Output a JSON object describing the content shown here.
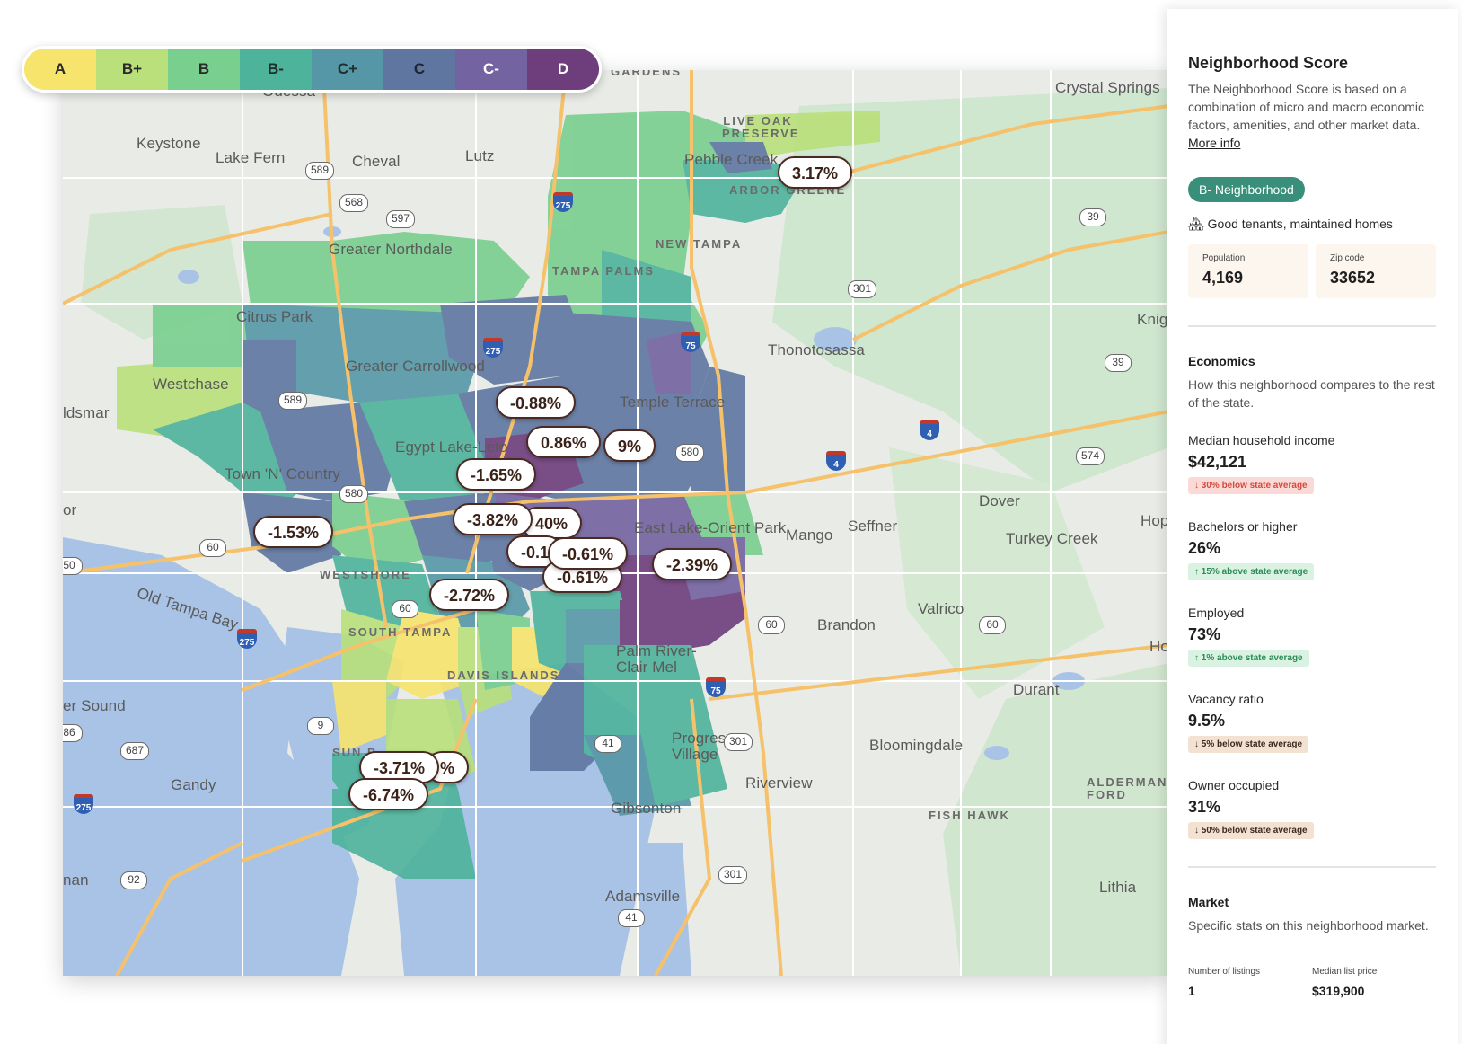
{
  "legend": [
    {
      "grade": "A",
      "color": "#f7e46c"
    },
    {
      "grade": "B+",
      "color": "#b9e07a"
    },
    {
      "grade": "B",
      "color": "#79cf8e"
    },
    {
      "grade": "B-",
      "color": "#4db39b"
    },
    {
      "grade": "C+",
      "color": "#5597a6"
    },
    {
      "grade": "C",
      "color": "#5f76a1"
    },
    {
      "grade": "C-",
      "color": "#7363a0"
    },
    {
      "grade": "D",
      "color": "#6d3d7c"
    }
  ],
  "map": {
    "places": [
      "Odessa",
      "Keystone",
      "Lake Fern",
      "Cheval",
      "Lutz",
      "Crystal Springs",
      "Pebble Creek",
      "Greater Northdale",
      "Citrus Park",
      "Westchase",
      "ldsmar",
      "Greater Carrollwood",
      "Temple Terrace",
      "Town 'N' Country",
      "Egypt Lake-Leto",
      "Thonotosassa",
      "East Lake-Orient Park",
      "Mango",
      "Seffner",
      "Dover",
      "Turkey Creek",
      "Valrico",
      "Brandon",
      "Old Tampa Bay",
      "Palm River-Clair Mel",
      "Progress Village",
      "Bloomingdale",
      "Riverview",
      "Gibsonton",
      "Gandy",
      "er Sound",
      "Durant",
      "Adamsville",
      "Lithia",
      "Knigh",
      "Hop Gar",
      "Ho",
      "or",
      "nan"
    ],
    "caps_labels": [
      "GARDENS",
      "LIVE OAK PRESERVE",
      "ARBOR GREENE",
      "NEW TAMPA",
      "TAMPA PALMS",
      "WESTSHORE",
      "SOUTH TAMPA",
      "DAVIS ISLANDS",
      "SUN B",
      "FISH HAWK",
      "ALDERMAN FORD"
    ],
    "shields": [
      "589",
      "568",
      "597",
      "39",
      "301",
      "39",
      "574",
      "60",
      "60",
      "60",
      "687",
      "92",
      "301",
      "301",
      "41",
      "41",
      "50",
      "86",
      "9",
      "580",
      "580",
      "589",
      "60"
    ],
    "interstates": [
      "275",
      "275",
      "75",
      "4",
      "4",
      "75",
      "275",
      "275"
    ],
    "percent_labels": [
      "3.17%",
      "-0.88%",
      "0.86%",
      "9%",
      "-1.65%",
      "-1.53%",
      "-3.82%",
      "40%",
      "-0.61%",
      "-0.61%",
      "-0.1",
      "-2.39%",
      "-2.72%",
      "-3.71%",
      "-6.74%",
      "%"
    ]
  },
  "panel": {
    "title": "Neighborhood Score",
    "description": "The Neighborhood Score is based on a combination of micro and macro economic factors, amenities, and other market data.",
    "more_info": "More info",
    "badge": "B- Neighborhood",
    "tagline": "🏘 Good tenants, maintained homes",
    "population_label": "Population",
    "population": "4,169",
    "zip_label": "Zip code",
    "zip": "33652",
    "economics_title": "Economics",
    "economics_desc": "How this neighborhood compares to the rest of the state.",
    "metrics": [
      {
        "label": "Median household income",
        "value": "$42,121",
        "compare": "↓ 30% below state average",
        "tone": "red"
      },
      {
        "label": "Bachelors or higher",
        "value": "26%",
        "compare": "↑ 15% above state average",
        "tone": "green"
      },
      {
        "label": "Employed",
        "value": "73%",
        "compare": "↑ 1% above state average",
        "tone": "green"
      },
      {
        "label": "Vacancy ratio",
        "value": "9.5%",
        "compare": "↓ 5% below state average",
        "tone": "tan"
      },
      {
        "label": "Owner occupied",
        "value": "31%",
        "compare": "↓ 50% below state average",
        "tone": "tan"
      }
    ],
    "market_title": "Market",
    "market_desc": "Specific stats on this neighborhood market.",
    "listings_label": "Number of listings",
    "listings": "1",
    "price_label": "Median list price",
    "price": "$319,900"
  }
}
